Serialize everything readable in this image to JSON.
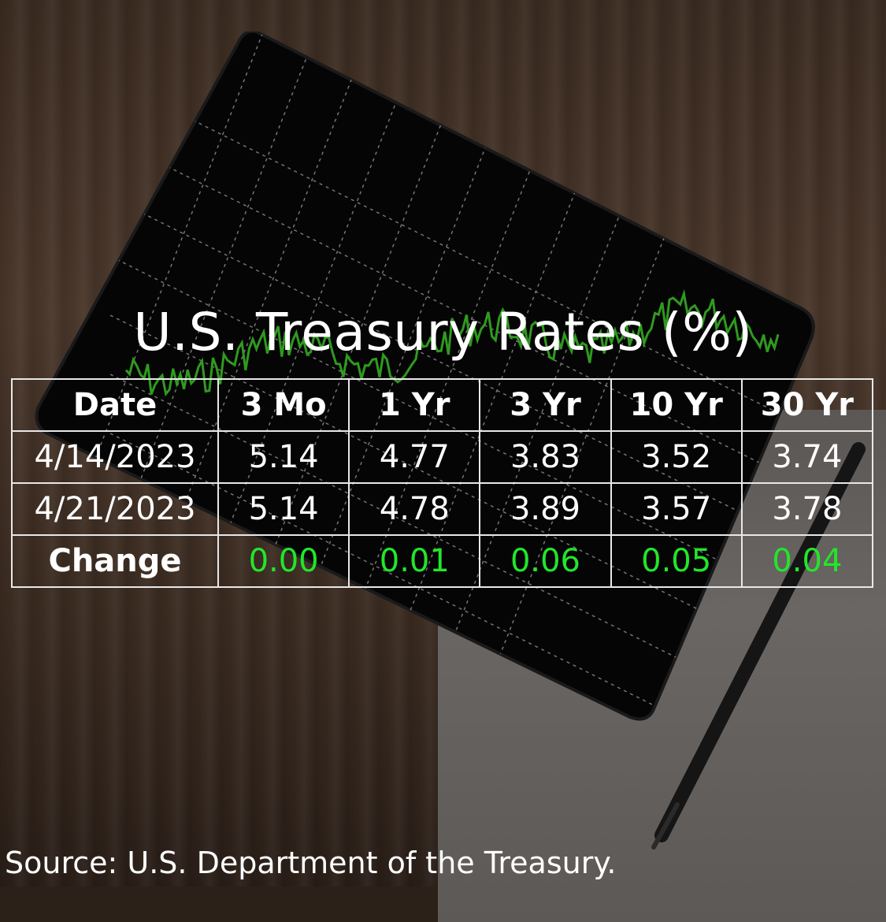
{
  "title": "U.S. Treasury Rates (%)",
  "table": {
    "headers": [
      "Date",
      "3 Mo",
      "1 Yr",
      "3 Yr",
      "10 Yr",
      "30 Yr"
    ],
    "rows": [
      {
        "label": "4/14/2023",
        "values": [
          "5.14",
          "4.77",
          "3.83",
          "3.52",
          "3.74"
        ]
      },
      {
        "label": "4/21/2023",
        "values": [
          "5.14",
          "4.78",
          "3.89",
          "3.57",
          "3.78"
        ]
      }
    ],
    "change": {
      "label": "Change",
      "values": [
        "0.00",
        "0.01",
        "0.06",
        "0.05",
        "0.04"
      ]
    }
  },
  "source": "Source: U.S. Department of the Treasury.",
  "colors": {
    "change_positive": "#22e62a",
    "text": "#ffffff",
    "table_border": "#e8e8e8",
    "screen_line": "#2f9a1f"
  }
}
